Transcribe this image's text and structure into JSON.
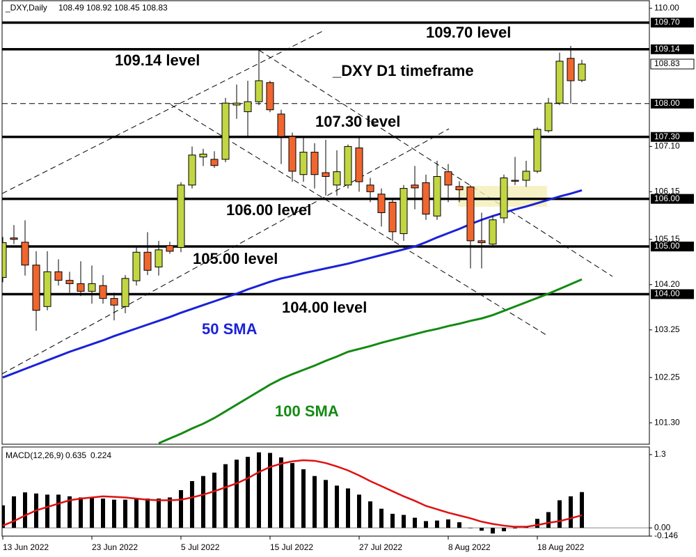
{
  "chart_data": [
    {
      "type": "candlestick",
      "title": "_DXY,Daily",
      "subtitle": "_DXY D1 timeframe",
      "categories": [
        "13 Jun 2022",
        null,
        null,
        null,
        null,
        null,
        null,
        null,
        "23 Jun 2022",
        null,
        null,
        null,
        null,
        null,
        null,
        null,
        "5 Jul 2022",
        null,
        null,
        null,
        null,
        null,
        null,
        null,
        "15 Jul 2022",
        null,
        null,
        null,
        null,
        null,
        null,
        null,
        "27 Jul 2022",
        null,
        null,
        null,
        null,
        null,
        null,
        null,
        "8 Aug 2022",
        null,
        null,
        null,
        null,
        null,
        null,
        null,
        "18 Aug 2022",
        null,
        null,
        null,
        null
      ],
      "open": [
        104.35,
        105.18,
        105.09,
        104.61,
        103.74,
        104.47,
        104.29,
        104.22,
        104.06,
        104.18,
        103.91,
        103.74,
        104.28,
        104.88,
        104.57,
        105.02,
        104.98,
        106.29,
        106.88,
        106.83,
        106.83,
        107.97,
        107.83,
        108.04,
        108.44,
        107.78,
        107.31,
        106.51,
        106.98,
        106.55,
        106.29,
        106.29,
        107.07,
        106.29,
        106.1,
        105.93,
        105.27,
        106.29,
        106.34,
        105.64,
        106.57,
        106.26,
        106.25,
        105.12,
        105.05,
        105.6,
        106.39,
        106.39,
        106.58,
        107.43,
        108.01,
        108.95,
        108.49
      ],
      "high": [
        105.2,
        105.45,
        105.55,
        104.9,
        104.9,
        104.73,
        104.47,
        104.69,
        104.6,
        104.4,
        104.03,
        104.4,
        104.98,
        105.3,
        105.12,
        105.1,
        106.35,
        107.1,
        107.05,
        107.0,
        108.12,
        108.4,
        108.48,
        109.14,
        108.48,
        107.87,
        107.39,
        107.31,
        107.17,
        107.24,
        107.02,
        107.14,
        107.31,
        106.44,
        106.22,
        106.0,
        106.29,
        106.69,
        106.51,
        106.8,
        106.73,
        106.37,
        106.29,
        105.71,
        105.64,
        106.51,
        106.88,
        106.8,
        107.5,
        108.12,
        109.07,
        109.21,
        108.92
      ],
      "low": [
        104.25,
        105.05,
        104.39,
        103.23,
        103.66,
        104.18,
        104.03,
        103.96,
        103.8,
        103.8,
        103.45,
        103.6,
        104.18,
        104.4,
        104.39,
        104.85,
        104.88,
        106.22,
        106.69,
        106.65,
        106.77,
        107.68,
        107.31,
        107.97,
        107.82,
        106.73,
        106.36,
        106.36,
        106.22,
        106.07,
        106.07,
        106.22,
        106.15,
        105.93,
        105.42,
        105.12,
        105.12,
        105.78,
        105.56,
        105.56,
        105.93,
        105.93,
        104.54,
        104.54,
        104.98,
        105.49,
        106.29,
        106.25,
        106.54,
        107.39,
        107.97,
        108.0,
        108.45
      ],
      "close": [
        105.08,
        105.15,
        104.61,
        103.66,
        104.47,
        104.29,
        104.22,
        104.06,
        104.22,
        103.91,
        103.77,
        104.33,
        104.88,
        104.5,
        104.93,
        104.9,
        106.29,
        106.92,
        106.94,
        106.7,
        108.01,
        108.01,
        108.04,
        108.48,
        107.87,
        107.31,
        106.58,
        106.98,
        106.51,
        106.47,
        106.57,
        107.1,
        106.36,
        106.15,
        105.71,
        105.31,
        106.22,
        106.23,
        105.68,
        106.47,
        106.29,
        106.19,
        105.12,
        105.08,
        105.56,
        106.44,
        106.37,
        106.58,
        107.46,
        108.01,
        108.89,
        108.48,
        108.83
      ],
      "up_color": "#c2d642",
      "down_color": "#f0662e",
      "series": [
        {
          "name": "50 SMA",
          "color": "#1a22d8",
          "values": [
            102.25,
            102.34,
            102.43,
            102.52,
            102.61,
            102.7,
            102.79,
            102.87,
            102.95,
            103.03,
            103.12,
            103.2,
            103.28,
            103.36,
            103.44,
            103.52,
            103.61,
            103.69,
            103.77,
            103.85,
            103.93,
            104.01,
            104.1,
            104.18,
            104.26,
            104.33,
            104.38,
            104.44,
            104.49,
            104.54,
            104.59,
            104.64,
            104.7,
            104.76,
            104.82,
            104.88,
            104.94,
            105.0,
            105.09,
            105.19,
            105.28,
            105.37,
            105.47,
            105.56,
            105.64,
            105.71,
            105.78,
            105.84,
            105.91,
            105.98,
            106.05,
            106.11,
            106.18
          ]
        },
        {
          "name": "100 SMA",
          "color": "#138a13",
          "values": [
            null,
            null,
            null,
            null,
            null,
            null,
            null,
            null,
            null,
            null,
            null,
            null,
            null,
            null,
            100.87,
            100.97,
            101.07,
            101.18,
            101.28,
            101.4,
            101.54,
            101.68,
            101.82,
            101.96,
            102.1,
            102.22,
            102.32,
            102.41,
            102.5,
            102.6,
            102.69,
            102.79,
            102.85,
            102.91,
            102.98,
            103.04,
            103.1,
            103.16,
            103.22,
            103.27,
            103.33,
            103.38,
            103.44,
            103.49,
            103.56,
            103.65,
            103.74,
            103.83,
            103.92,
            104.01,
            104.11,
            104.21,
            104.31
          ]
        }
      ],
      "levels": [
        {
          "value": 109.7,
          "label": "109.70",
          "text": "109.70 level"
        },
        {
          "value": 109.14,
          "label": "109.14",
          "text": "109.14 level"
        },
        {
          "value": 108.0,
          "label": "108.00",
          "dashed": true
        },
        {
          "value": 107.3,
          "label": "107.30",
          "text": "107.30 level"
        },
        {
          "value": 106.0,
          "label": "106.00",
          "text": "106.00 level"
        },
        {
          "value": 105.0,
          "label": "105.00",
          "text": "105.00 level"
        },
        {
          "value": 104.0,
          "label": "104.00",
          "text": "104.00 level"
        }
      ],
      "ylim": [
        100.85,
        110.16
      ],
      "yticks": [
        {
          "value": 110,
          "label": "110.00"
        },
        {
          "value": 107.1,
          "label": "107.10"
        },
        {
          "value": 106.15,
          "label": "106.15"
        },
        {
          "value": 105.15,
          "label": "105.15"
        },
        {
          "value": 104.2,
          "label": "104.20"
        },
        {
          "value": 103.25,
          "label": "103.25"
        },
        {
          "value": 102.25,
          "label": "102.25"
        },
        {
          "value": 101.3,
          "label": "101.30"
        }
      ]
    },
    {
      "type": "macd",
      "title": "MACD(12,26,9)",
      "histogram": {
        "color": "#000000",
        "values": [
          0.4,
          0.56,
          0.63,
          0.61,
          0.59,
          0.59,
          0.56,
          0.54,
          0.55,
          0.52,
          0.5,
          0.5,
          0.52,
          0.52,
          0.52,
          0.54,
          0.67,
          0.83,
          0.92,
          0.98,
          1.13,
          1.21,
          1.26,
          1.34,
          1.33,
          1.25,
          1.15,
          1.04,
          0.92,
          0.85,
          0.75,
          0.7,
          0.59,
          0.47,
          0.34,
          0.25,
          0.23,
          0.18,
          0.12,
          0.13,
          0.15,
          0.1,
          0.0,
          -0.05,
          -0.1,
          -0.06,
          -0.01,
          0.02,
          0.16,
          0.28,
          0.49,
          0.56,
          0.635
        ]
      },
      "signal": {
        "color": "#e01010",
        "values": [
          0.04,
          0.12,
          0.22,
          0.31,
          0.37,
          0.43,
          0.49,
          0.52,
          0.54,
          0.56,
          0.55,
          0.54,
          0.52,
          0.5,
          0.49,
          0.49,
          0.5,
          0.54,
          0.59,
          0.65,
          0.72,
          0.79,
          0.88,
          0.99,
          1.08,
          1.14,
          1.18,
          1.2,
          1.19,
          1.15,
          1.09,
          1.02,
          0.93,
          0.83,
          0.74,
          0.65,
          0.56,
          0.48,
          0.39,
          0.33,
          0.27,
          0.22,
          0.17,
          0.11,
          0.07,
          0.04,
          0.02,
          0.02,
          0.05,
          0.09,
          0.12,
          0.17,
          0.224
        ]
      },
      "ylim": [
        -0.146,
        1.435
      ],
      "yticks": [
        1.3,
        {
          "value": 0,
          "label": "0.00"
        },
        -0.146
      ]
    }
  ]
}
